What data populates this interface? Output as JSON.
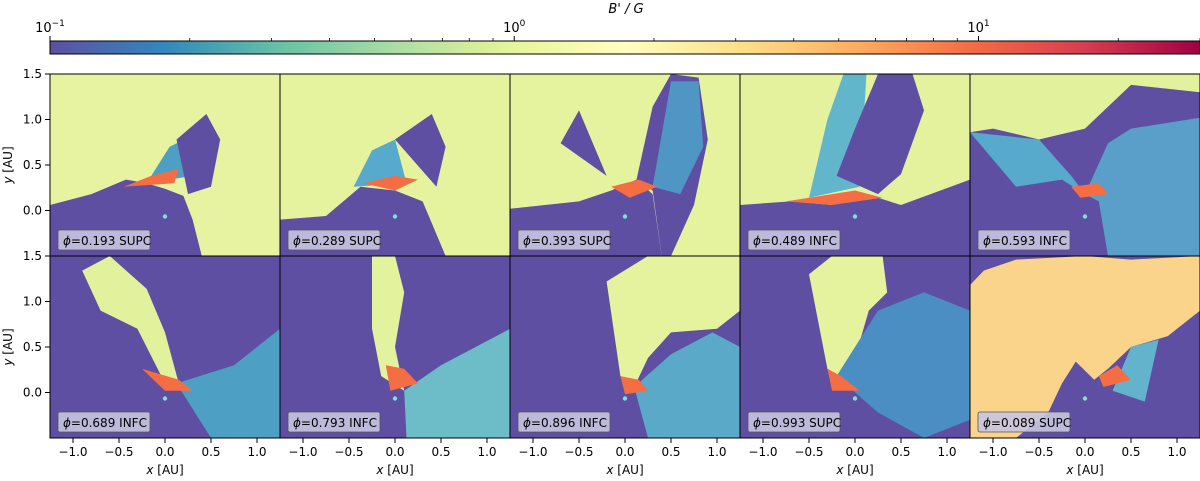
{
  "chart_data": {
    "type": "heatmap",
    "colorbar": {
      "label": "B' / G",
      "scale": "log",
      "range": [
        0.1,
        30
      ],
      "ticks": [
        {
          "value": 0.1,
          "base": "10",
          "exp": "−1"
        },
        {
          "value": 1,
          "base": "10",
          "exp": "0"
        },
        {
          "value": 10,
          "base": "10",
          "exp": "1"
        }
      ],
      "colormap": [
        "#5e4fa2",
        "#3288bd",
        "#66c2a5",
        "#abdda4",
        "#e6f598",
        "#ffffbf",
        "#fee08b",
        "#fdae61",
        "#f46d43",
        "#d53e4f",
        "#9e0142"
      ]
    },
    "xlabel": "x [AU]",
    "ylabel": "y [AU]",
    "xlim": [
      -1.25,
      1.25
    ],
    "ylim": [
      -0.5,
      1.5
    ],
    "xticks": [
      "−1.0",
      "−0.5",
      "0.0",
      "0.5",
      "1.0"
    ],
    "xtick_values": [
      -1.0,
      -0.5,
      0.0,
      0.5,
      1.0
    ],
    "yticks": [
      "−0.5",
      "0.0",
      "0.5",
      "1.0",
      "1.5"
    ],
    "ytick_values": [
      -0.5,
      0.0,
      0.5,
      1.0,
      1.5
    ],
    "panels": [
      {
        "phi": "0.193",
        "conj": "SUPC",
        "ambient": "#e8f3a1"
      },
      {
        "phi": "0.289",
        "conj": "SUPC",
        "ambient": "#e6f39e"
      },
      {
        "phi": "0.393",
        "conj": "SUPC",
        "ambient": "#e6f39e"
      },
      {
        "phi": "0.489",
        "conj": "INFC",
        "ambient": "#e4f29d"
      },
      {
        "phi": "0.593",
        "conj": "INFC",
        "ambient": "#e2f19b"
      },
      {
        "phi": "0.689",
        "conj": "INFC",
        "ambient": "#e2f19b"
      },
      {
        "phi": "0.793",
        "conj": "INFC",
        "ambient": "#e3f29c"
      },
      {
        "phi": "0.896",
        "conj": "INFC",
        "ambient": "#e6f39e"
      },
      {
        "phi": "0.993",
        "conj": "SUPC",
        "ambient": "#e6f39e"
      },
      {
        "phi": "0.089",
        "conj": "SUPC",
        "ambient": "#f9d48a"
      }
    ],
    "background_color": "#5e4fa2",
    "star_color": "#7fe0d0"
  }
}
